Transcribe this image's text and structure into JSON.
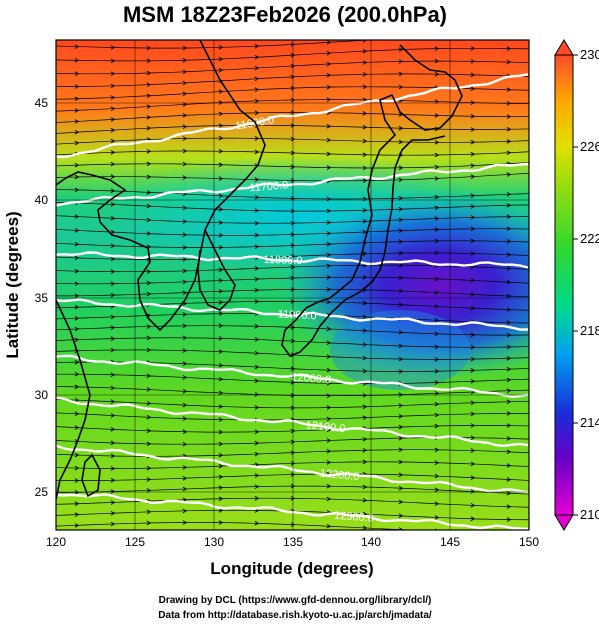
{
  "title": "MSM 18Z23Feb2026 (200.0hPa)",
  "xlabel": "Longitude (degrees)",
  "ylabel": "Latitude  (degrees)",
  "x_ticks": [
    "120",
    "125",
    "130",
    "135",
    "140",
    "145",
    "150"
  ],
  "y_ticks": [
    "25",
    "30",
    "35",
    "40",
    "45"
  ],
  "colorbar": {
    "ticks": [
      "230",
      "226",
      "222",
      "218",
      "214",
      "210"
    ],
    "min": 210,
    "max": 230,
    "colors": [
      "#e100d2",
      "#6a00c8",
      "#1a2cd8",
      "#00a0f0",
      "#00d890",
      "#2ed82e",
      "#8adc14",
      "#e0e000",
      "#ffa800",
      "#ff4a2a"
    ]
  },
  "contour_labels": [
    "11600.0",
    "11700.0",
    "11800.0",
    "11900.0",
    "12000.0",
    "12100.0",
    "12200.0",
    "12300.0"
  ],
  "credits": [
    "Drawing by DCL (https://www.gfd-dennou.org/library/dcl/)",
    "Data from http://database.rish.kyoto-u.ac.jp/arch/jmadata/"
  ],
  "chart_data": {
    "type": "heatmap",
    "title": "MSM 18Z23Feb2026 (200.0hPa)",
    "xlabel": "Longitude (degrees)",
    "ylabel": "Latitude  (degrees)",
    "xlim": [
      120,
      150
    ],
    "ylim": [
      22.4,
      47.6
    ],
    "field": "temperature shading (colorbar 210 to 230)",
    "temperature_regions": [
      {
        "region": "far north 45-47N",
        "approx_value": 228
      },
      {
        "region": "north 40-44N",
        "approx_value": 223
      },
      {
        "region": "Japan Sea / northern Honshu 36-40N",
        "approx_value": 218
      },
      {
        "region": "east of Japan 33-38N, 140-150E",
        "approx_value": 213
      },
      {
        "region": "south 23-30N",
        "approx_value": 223
      }
    ],
    "contours": [
      {
        "label": "11600.0",
        "lat_west": 41.6,
        "lat_east": 45.8
      },
      {
        "label": "11700.0",
        "lat_west": 39.2,
        "lat_east": 41.2
      },
      {
        "label": "11800.0",
        "lat_west": 36.6,
        "lat_east": 36.0
      },
      {
        "label": "11900.0",
        "lat_west": 34.2,
        "lat_east": 32.8
      },
      {
        "label": "12000.0",
        "lat_west": 31.3,
        "lat_east": 29.3
      },
      {
        "label": "12100.0",
        "lat_west": 29.1,
        "lat_east": 26.7
      },
      {
        "label": "12200.0",
        "lat_west": 26.7,
        "lat_east": 24.3
      },
      {
        "label": "12300.0",
        "lat_west": 24.3,
        "lat_east": 22.4
      }
    ],
    "wind": "westerly streamline arrows across the whole domain"
  }
}
